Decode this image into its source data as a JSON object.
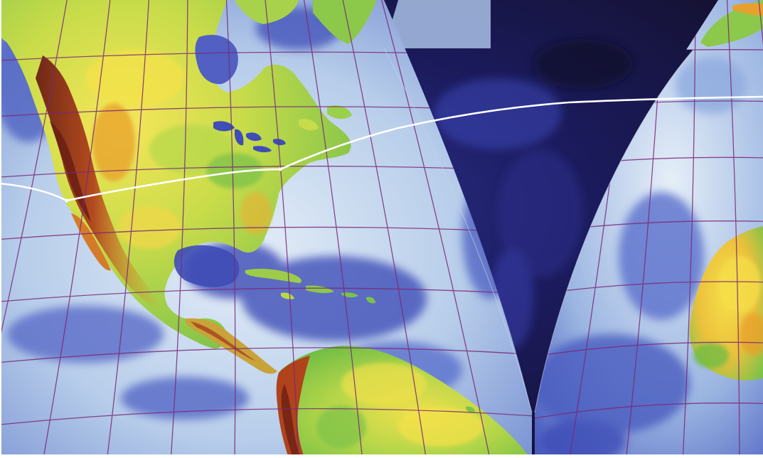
{
  "map": {
    "projection": "interrupted-globe-gores",
    "features": [
      "north-america",
      "south-america",
      "africa",
      "greenland",
      "atlantic-ocean",
      "pacific-ocean",
      "caribbean-islands",
      "great-lakes",
      "hudson-bay",
      "gulf-of-mexico",
      "great-circle-route"
    ],
    "graticule": true,
    "has_text_labels": false
  },
  "colors": {
    "frame": "#ffffff",
    "space_dark": "#14112f",
    "space_deep": "#1b1b5e",
    "ocean_light": "#d4e4f2",
    "ocean_mid": "#7fa1d8",
    "ocean_deep": "#3a49b0",
    "land_lowland": "#7cc24a",
    "land_green": "#b7d94c",
    "land_yellow": "#f4e24a",
    "land_orange": "#e8a02c",
    "land_high": "#b0421c",
    "land_peak": "#6a1f14",
    "graticule": "#7a2a78",
    "route_line": "#ffffff"
  }
}
